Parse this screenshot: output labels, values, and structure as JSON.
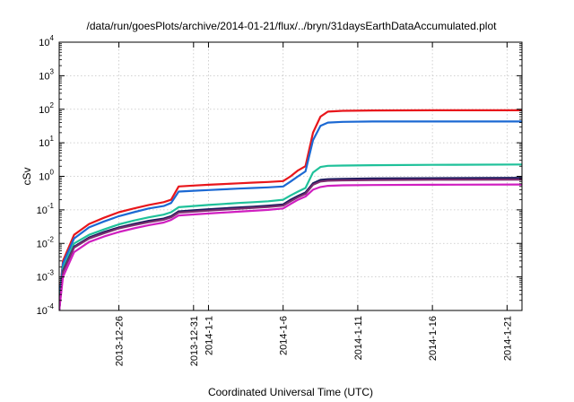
{
  "chart_data": {
    "type": "line",
    "title": "/data/run/goesPlots/archive/2014-01-21/flux/../bryn/31daysEarthDataAccumulated.plot",
    "xlabel": "Coordinated Universal Time (UTC)",
    "ylabel": "cSv",
    "yscale": "log",
    "ylim": [
      0.0001,
      10000
    ],
    "xlim": [
      "2013-12-22",
      "2014-01-22"
    ],
    "grid": true,
    "legend": "none",
    "x_ticks": [
      "2013-12-26",
      "2013-12-31",
      "2014-1-1",
      "2014-1-6",
      "2014-1-11",
      "2014-1-16",
      "2014-1-21"
    ],
    "x_tick_dates": [
      "2013-12-26",
      "2013-12-31",
      "2014-01-01",
      "2014-01-06",
      "2014-01-11",
      "2014-01-16",
      "2014-01-21"
    ],
    "y_ticks": [
      {
        "base": "10",
        "exp": "-4",
        "value": 0.0001
      },
      {
        "base": "10",
        "exp": "-3",
        "value": 0.001
      },
      {
        "base": "10",
        "exp": "-2",
        "value": 0.01
      },
      {
        "base": "10",
        "exp": "-1",
        "value": 0.1
      },
      {
        "base": "10",
        "exp": "0",
        "value": 1
      },
      {
        "base": "10",
        "exp": "1",
        "value": 10
      },
      {
        "base": "10",
        "exp": "2",
        "value": 100
      },
      {
        "base": "10",
        "exp": "3",
        "value": 1000
      },
      {
        "base": "10",
        "exp": "4",
        "value": 10000
      }
    ],
    "series": [
      {
        "color": "#e8161b",
        "x": [
          "2013-12-22",
          "2013-12-22T06:00",
          "2013-12-23",
          "2013-12-24",
          "2013-12-25",
          "2013-12-26",
          "2013-12-27",
          "2013-12-28",
          "2013-12-29",
          "2013-12-29T12:00",
          "2013-12-30",
          "2013-12-31",
          "2014-01-01",
          "2014-01-02",
          "2014-01-03",
          "2014-01-04",
          "2014-01-05",
          "2014-01-06",
          "2014-01-06T12:00",
          "2014-01-07",
          "2014-01-07T12:00",
          "2014-01-08",
          "2014-01-08T12:00",
          "2014-01-09",
          "2014-01-10",
          "2014-01-12",
          "2014-01-16",
          "2014-01-22"
        ],
        "y": [
          0.0002,
          0.003,
          0.018,
          0.038,
          0.058,
          0.085,
          0.11,
          0.14,
          0.17,
          0.2,
          0.5,
          0.53,
          0.56,
          0.59,
          0.62,
          0.65,
          0.68,
          0.72,
          1.0,
          1.5,
          2.0,
          20,
          60,
          85,
          90,
          92,
          93,
          93
        ]
      },
      {
        "color": "#1c69d3",
        "x": [
          "2013-12-22",
          "2013-12-22T06:00",
          "2013-12-23",
          "2013-12-24",
          "2013-12-25",
          "2013-12-26",
          "2013-12-27",
          "2013-12-28",
          "2013-12-29",
          "2013-12-29T12:00",
          "2013-12-30",
          "2013-12-31",
          "2014-01-01",
          "2014-01-02",
          "2014-01-03",
          "2014-01-04",
          "2014-01-05",
          "2014-01-06",
          "2014-01-06T12:00",
          "2014-01-07",
          "2014-01-07T12:00",
          "2014-01-08",
          "2014-01-08T12:00",
          "2014-01-09",
          "2014-01-10",
          "2014-01-12",
          "2014-01-16",
          "2014-01-22"
        ],
        "y": [
          0.0002,
          0.0025,
          0.014,
          0.03,
          0.045,
          0.065,
          0.085,
          0.11,
          0.13,
          0.16,
          0.35,
          0.37,
          0.39,
          0.41,
          0.43,
          0.45,
          0.47,
          0.5,
          0.7,
          1.0,
          1.4,
          12,
          32,
          40,
          42,
          43,
          43,
          43
        ]
      },
      {
        "color": "#1fc19a",
        "x": [
          "2013-12-22",
          "2013-12-22T06:00",
          "2013-12-23",
          "2013-12-24",
          "2013-12-25",
          "2013-12-26",
          "2013-12-27",
          "2013-12-28",
          "2013-12-29",
          "2013-12-29T12:00",
          "2013-12-30",
          "2013-12-31",
          "2014-01-01",
          "2014-01-02",
          "2014-01-03",
          "2014-01-04",
          "2014-01-05",
          "2014-01-06",
          "2014-01-06T12:00",
          "2014-01-07",
          "2014-01-07T12:00",
          "2014-01-08",
          "2014-01-08T12:00",
          "2014-01-09",
          "2014-01-10",
          "2014-01-12",
          "2014-01-16",
          "2014-01-22"
        ],
        "y": [
          0.0001,
          0.0018,
          0.01,
          0.018,
          0.026,
          0.037,
          0.048,
          0.06,
          0.072,
          0.085,
          0.12,
          0.13,
          0.14,
          0.15,
          0.16,
          0.17,
          0.18,
          0.2,
          0.27,
          0.35,
          0.45,
          1.3,
          1.9,
          2.05,
          2.1,
          2.15,
          2.2,
          2.25
        ]
      },
      {
        "color": "#1a1a5e",
        "x": [
          "2013-12-22",
          "2013-12-22T06:00",
          "2013-12-23",
          "2013-12-24",
          "2013-12-25",
          "2013-12-26",
          "2013-12-27",
          "2013-12-28",
          "2013-12-29",
          "2013-12-29T12:00",
          "2013-12-30",
          "2013-12-31",
          "2014-01-01",
          "2014-01-02",
          "2014-01-03",
          "2014-01-04",
          "2014-01-05",
          "2014-01-06",
          "2014-01-06T12:00",
          "2014-01-07",
          "2014-01-07T12:00",
          "2014-01-08",
          "2014-01-08T12:00",
          "2014-01-09",
          "2014-01-10",
          "2014-01-12",
          "2014-01-16",
          "2014-01-22"
        ],
        "y": [
          0.0001,
          0.0015,
          0.008,
          0.015,
          0.022,
          0.03,
          0.038,
          0.047,
          0.055,
          0.065,
          0.09,
          0.097,
          0.104,
          0.111,
          0.118,
          0.125,
          0.133,
          0.145,
          0.2,
          0.26,
          0.33,
          0.62,
          0.78,
          0.82,
          0.84,
          0.86,
          0.88,
          0.9
        ]
      },
      {
        "color": "#7b2d6e",
        "x": [
          "2013-12-22",
          "2013-12-22T06:00",
          "2013-12-23",
          "2013-12-24",
          "2013-12-25",
          "2013-12-26",
          "2013-12-27",
          "2013-12-28",
          "2013-12-29",
          "2013-12-29T12:00",
          "2013-12-30",
          "2013-12-31",
          "2014-01-01",
          "2014-01-02",
          "2014-01-03",
          "2014-01-04",
          "2014-01-05",
          "2014-01-06",
          "2014-01-06T12:00",
          "2014-01-07",
          "2014-01-07T12:00",
          "2014-01-08",
          "2014-01-08T12:00",
          "2014-01-09",
          "2014-01-10",
          "2014-01-12",
          "2014-01-16",
          "2014-01-22"
        ],
        "y": [
          0.0001,
          0.0014,
          0.0075,
          0.014,
          0.02,
          0.028,
          0.035,
          0.043,
          0.051,
          0.06,
          0.083,
          0.089,
          0.095,
          0.101,
          0.108,
          0.115,
          0.122,
          0.133,
          0.18,
          0.24,
          0.3,
          0.56,
          0.7,
          0.74,
          0.76,
          0.77,
          0.79,
          0.8
        ]
      },
      {
        "color": "#d01fc0",
        "x": [
          "2013-12-22",
          "2013-12-22T06:00",
          "2013-12-23",
          "2013-12-24",
          "2013-12-25",
          "2013-12-26",
          "2013-12-27",
          "2013-12-28",
          "2013-12-29",
          "2013-12-29T12:00",
          "2013-12-30",
          "2013-12-31",
          "2014-01-01",
          "2014-01-02",
          "2014-01-03",
          "2014-01-04",
          "2014-01-05",
          "2014-01-06",
          "2014-01-06T12:00",
          "2014-01-07",
          "2014-01-07T12:00",
          "2014-01-08",
          "2014-01-08T12:00",
          "2014-01-09",
          "2014-01-10",
          "2014-01-12",
          "2014-01-16",
          "2014-01-22"
        ],
        "y": [
          0.0001,
          0.001,
          0.0055,
          0.011,
          0.016,
          0.022,
          0.028,
          0.035,
          0.042,
          0.05,
          0.068,
          0.073,
          0.078,
          0.083,
          0.088,
          0.094,
          0.1,
          0.11,
          0.15,
          0.2,
          0.25,
          0.4,
          0.48,
          0.52,
          0.54,
          0.55,
          0.56,
          0.57
        ]
      }
    ]
  }
}
